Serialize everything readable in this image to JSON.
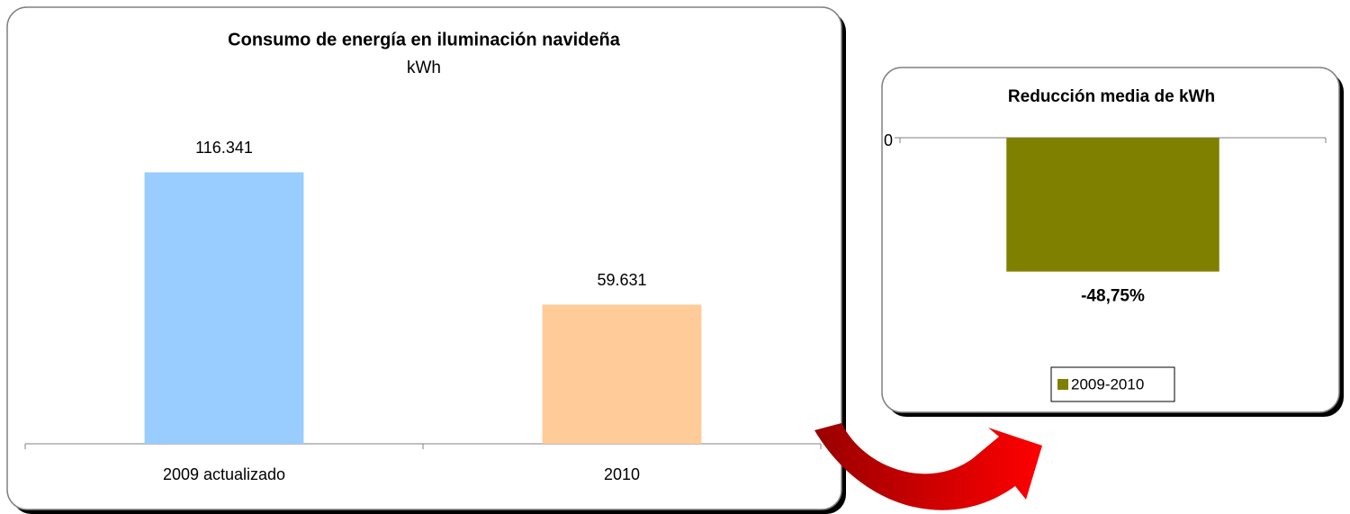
{
  "chart_data": [
    {
      "type": "bar",
      "title": "Consumo de energía en iluminación navideña",
      "subtitle": "kWh",
      "categories": [
        "2009 actualizado",
        "2010"
      ],
      "values": [
        116341,
        59631
      ],
      "value_labels": [
        "116.341",
        "59.631"
      ],
      "colors": [
        "#99ccff",
        "#ffcc99"
      ],
      "ylim": [
        0,
        130000
      ]
    },
    {
      "type": "bar",
      "title": "Reducción media de kWh",
      "categories": [
        null
      ],
      "series": [
        {
          "name": "2009-2010",
          "color": "#808000",
          "values": [
            -48.75
          ],
          "value_labels": [
            "-48,75%"
          ]
        }
      ],
      "ylim": [
        -60,
        0
      ],
      "yticks": [
        0
      ],
      "legend": "bottom"
    }
  ]
}
